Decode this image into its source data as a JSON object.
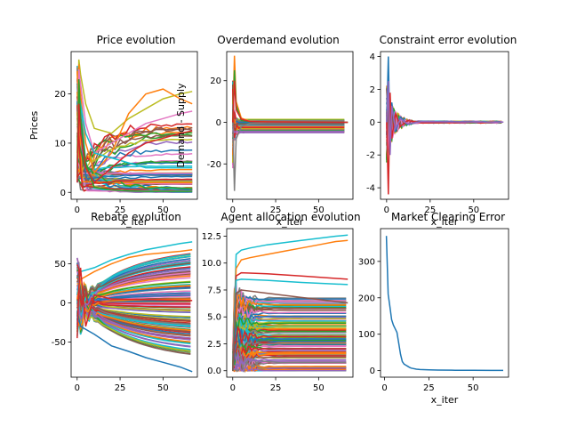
{
  "chart_data": [
    {
      "type": "line",
      "title": "Price evolution",
      "xlabel": "x_iter",
      "ylabel": "Prices",
      "xlim": [
        -3.5,
        70
      ],
      "ylim": [
        -1.4,
        28.6
      ],
      "xticks": [
        0,
        25,
        50
      ],
      "yticks": [
        0,
        10,
        20
      ],
      "series_count": 60,
      "series": [
        {
          "color": "#bcbd22",
          "x": [
            0,
            1,
            2,
            5,
            10,
            20,
            30,
            40,
            50,
            60,
            67
          ],
          "values": [
            8,
            27,
            24,
            18,
            13,
            12,
            15,
            17,
            19,
            20,
            20.5
          ]
        },
        {
          "color": "#ff7f0e",
          "x": [
            0,
            1,
            2,
            5,
            10,
            20,
            30,
            40,
            50,
            60,
            67
          ],
          "values": [
            6,
            26,
            20,
            10,
            4,
            8,
            16,
            20,
            21,
            19,
            18
          ]
        },
        {
          "color": "#e377c2",
          "x": [
            0,
            1,
            2,
            5,
            10,
            20,
            30,
            40,
            50,
            60,
            67
          ],
          "values": [
            5,
            25,
            22,
            14,
            8,
            10,
            12,
            14,
            15,
            16,
            16.5
          ]
        },
        {
          "color": "#17becf",
          "x": [
            0,
            1,
            2,
            5,
            10,
            20,
            30,
            40,
            50,
            60,
            67
          ],
          "values": [
            4,
            20,
            18,
            12,
            8,
            7,
            6,
            5,
            5,
            5,
            5
          ]
        },
        {
          "color": "#2ca02c",
          "x": [
            0,
            1,
            2,
            5,
            10,
            20,
            30,
            40,
            50,
            60,
            67
          ],
          "values": [
            3,
            23,
            15,
            6,
            1,
            0.5,
            0.3,
            0.2,
            0.2,
            0.2,
            0.2
          ]
        },
        {
          "color": "#d62728",
          "x": [
            0,
            1,
            2,
            5,
            10,
            20,
            30,
            40,
            50,
            60,
            67
          ],
          "values": [
            2,
            18,
            12,
            5,
            2,
            5,
            8,
            10,
            11,
            12,
            12.5
          ]
        }
      ]
    },
    {
      "type": "line",
      "title": "Overdemand evolution",
      "xlabel": "x_iter",
      "ylabel": "Demand - Supply",
      "xlim": [
        -3.5,
        70
      ],
      "ylim": [
        -37,
        34
      ],
      "xticks": [
        0,
        25,
        50
      ],
      "yticks": [
        20,
        0,
        -20
      ],
      "series_count": 60,
      "series": [
        {
          "color": "#ff7f0e",
          "x": [
            0,
            1,
            2,
            5,
            10,
            20,
            67
          ],
          "values": [
            0,
            32,
            10,
            2,
            0.5,
            0.2,
            0
          ]
        },
        {
          "color": "#2ca02c",
          "x": [
            0,
            1,
            2,
            5,
            10,
            20,
            67
          ],
          "values": [
            0,
            25,
            8,
            1,
            0.3,
            0.1,
            0
          ]
        },
        {
          "color": "#7f7f7f",
          "x": [
            0,
            1,
            2,
            5,
            10,
            20,
            67
          ],
          "values": [
            0,
            -33,
            -8,
            -2,
            -0.5,
            -0.2,
            0
          ]
        },
        {
          "color": "#d62728",
          "x": [
            0,
            1,
            2,
            5,
            10,
            20,
            67
          ],
          "values": [
            0,
            20,
            6,
            1.5,
            0.4,
            0.2,
            0
          ]
        }
      ]
    },
    {
      "type": "line",
      "title": "Constraint error evolution",
      "xlabel": "x_iter",
      "ylabel": "",
      "xlim": [
        -3.5,
        70
      ],
      "ylim": [
        -4.7,
        4.3
      ],
      "xticks": [
        0,
        25,
        50
      ],
      "yticks": [
        4,
        2,
        0,
        -2,
        -4
      ],
      "series_count": 60,
      "series": [
        {
          "color": "#1f77b4",
          "x": [
            0,
            1,
            2,
            3,
            5,
            8,
            12,
            20,
            67
          ],
          "values": [
            0,
            4,
            -1.5,
            1.2,
            -0.6,
            0.3,
            -0.15,
            0.05,
            0
          ]
        },
        {
          "color": "#d62728",
          "x": [
            0,
            1,
            2,
            3,
            5,
            8,
            12,
            20,
            67
          ],
          "values": [
            0,
            -4.4,
            1.8,
            -1,
            0.5,
            -0.25,
            0.1,
            -0.05,
            0
          ]
        },
        {
          "color": "#9467bd",
          "x": [
            0,
            1,
            2,
            3,
            5,
            8,
            12,
            20,
            67
          ],
          "values": [
            0,
            2.5,
            -2,
            1,
            -0.4,
            0.2,
            -0.1,
            0.03,
            0
          ]
        }
      ]
    },
    {
      "type": "line",
      "title": "Rebate evolution",
      "xlabel": "",
      "ylabel": "",
      "xlim": [
        -3.5,
        70
      ],
      "ylim": [
        -95,
        95
      ],
      "xticks": [
        0,
        25,
        50
      ],
      "yticks": [
        50,
        0,
        -50
      ],
      "series_count": 120,
      "series": [
        {
          "color": "#17becf",
          "x": [
            0,
            2,
            10,
            20,
            30,
            40,
            50,
            60,
            67
          ],
          "values": [
            10,
            40,
            45,
            55,
            62,
            68,
            72,
            76,
            78
          ]
        },
        {
          "color": "#ff7f0e",
          "x": [
            0,
            2,
            10,
            20,
            30,
            40,
            50,
            60,
            67
          ],
          "values": [
            5,
            30,
            40,
            50,
            58,
            62,
            64,
            66,
            68
          ]
        },
        {
          "color": "#1f77b4",
          "x": [
            0,
            2,
            10,
            20,
            30,
            40,
            50,
            60,
            67
          ],
          "values": [
            -10,
            -30,
            -40,
            -55,
            -62,
            -70,
            -76,
            -82,
            -88
          ]
        },
        {
          "color": "#d62728",
          "x": [
            0,
            1,
            2,
            5,
            10,
            20,
            67
          ],
          "values": [
            -45,
            20,
            45,
            -30,
            10,
            5,
            3
          ]
        }
      ]
    },
    {
      "type": "line",
      "title": "Agent allocation evolution",
      "xlabel": "",
      "ylabel": "",
      "xlim": [
        -3.5,
        70
      ],
      "ylim": [
        -0.6,
        13.2
      ],
      "xticks": [
        0,
        25,
        50
      ],
      "yticks": [
        0.0,
        2.5,
        5.0,
        7.5,
        10.0,
        12.5
      ],
      "series_count": 120,
      "series": [
        {
          "color": "#17becf",
          "x": [
            0,
            2,
            5,
            10,
            20,
            30,
            40,
            50,
            60,
            67
          ],
          "values": [
            0,
            10.8,
            11.2,
            11.4,
            11.7,
            11.9,
            12.1,
            12.3,
            12.5,
            12.6
          ]
        },
        {
          "color": "#ff7f0e",
          "x": [
            0,
            2,
            5,
            10,
            20,
            30,
            40,
            50,
            60,
            67
          ],
          "values": [
            0,
            9.5,
            10.3,
            10.5,
            10.8,
            11.1,
            11.4,
            11.7,
            12,
            12.1
          ]
        },
        {
          "color": "#d62728",
          "x": [
            0,
            2,
            5,
            20,
            40,
            67
          ],
          "values": [
            0,
            8.8,
            9.1,
            9.0,
            8.8,
            8.5
          ]
        },
        {
          "color": "#17becf",
          "x": [
            0,
            2,
            5,
            20,
            40,
            67
          ],
          "values": [
            0,
            8.4,
            8.5,
            8.4,
            8.2,
            8.0
          ]
        },
        {
          "color": "#8c564b",
          "x": [
            0,
            2,
            5,
            20,
            40,
            67
          ],
          "values": [
            0,
            7.2,
            7.5,
            7.2,
            6.8,
            6.3
          ]
        }
      ]
    },
    {
      "type": "line",
      "title": "Market Clearing Error",
      "xlabel": "x_iter",
      "ylabel": "",
      "xlim": [
        -2.3,
        70
      ],
      "ylim": [
        -18,
        390
      ],
      "xticks": [
        0,
        25,
        50
      ],
      "yticks": [
        0,
        100,
        200,
        300
      ],
      "series": [
        {
          "color": "#1f77b4",
          "x": [
            1,
            2,
            3,
            4,
            5,
            6,
            7,
            8,
            9,
            10,
            11,
            12,
            13,
            14,
            15,
            16,
            18,
            20,
            25,
            30,
            40,
            50,
            60,
            67
          ],
          "values": [
            370,
            210,
            175,
            140,
            125,
            115,
            105,
            75,
            45,
            25,
            18,
            15,
            12,
            9,
            7,
            6,
            4,
            3,
            2,
            1.5,
            1,
            0.8,
            0.6,
            0.5
          ]
        }
      ]
    }
  ]
}
